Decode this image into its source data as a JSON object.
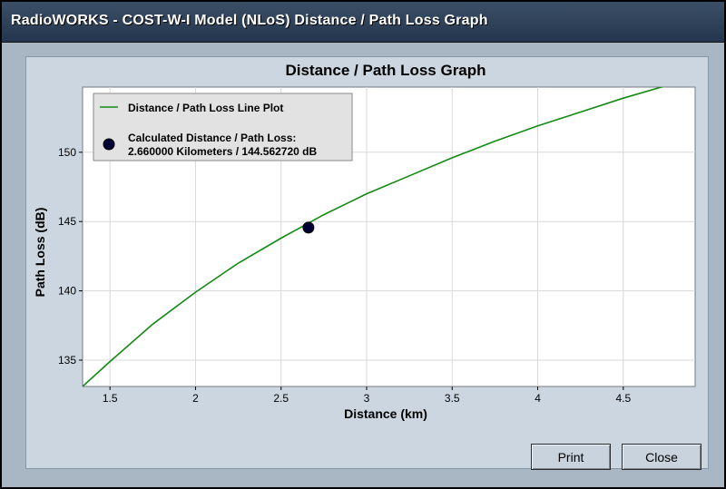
{
  "window": {
    "title": "RadioWORKS - COST-W-I Model (NLoS) Distance / Path Loss Graph"
  },
  "buttons": {
    "print_label": "Print",
    "close_label": "Close"
  },
  "colors": {
    "line": "#138a13",
    "marker": "#000033",
    "plot_bg": "#ffffff",
    "grid": "#d8d8d8",
    "panel_bg": "#cbd6e0",
    "client_bg": "#a9b7c4",
    "titlebar": "#2e4259"
  },
  "chart_data": {
    "type": "line",
    "title": "Distance / Path Loss Graph",
    "xlabel": "Distance (km)",
    "ylabel": "Path Loss (dB)",
    "xlim": [
      1.34,
      4.92
    ],
    "ylim": [
      133.1,
      154.7
    ],
    "x_ticks": [
      1.5,
      2,
      2.5,
      3,
      3.5,
      4,
      4.5
    ],
    "x_tick_labels": [
      "1.5",
      "2",
      "2.5",
      "3",
      "3.5",
      "4",
      "4.5"
    ],
    "y_ticks": [
      135,
      140,
      145,
      150
    ],
    "y_tick_labels": [
      "135",
      "140",
      "145",
      "150"
    ],
    "grid": true,
    "legend_position": "top-left",
    "series": [
      {
        "name": "Distance / Path Loss Line Plot",
        "x": [
          1.34,
          1.5,
          1.75,
          2.0,
          2.25,
          2.5,
          2.75,
          3.0,
          3.25,
          3.5,
          3.75,
          4.0,
          4.25,
          4.5,
          4.75,
          4.92
        ],
        "y": [
          133.1,
          134.9,
          137.6,
          139.9,
          142.0,
          143.8,
          145.5,
          147.0,
          148.3,
          149.6,
          150.8,
          151.9,
          152.9,
          153.9,
          154.8,
          155.4
        ]
      }
    ],
    "calculated_point": {
      "name": "Calculated Distance / Path Loss:",
      "detail": "2.660000 Kilometers / 144.562720 dB",
      "x": 2.66,
      "y": 144.56272
    }
  }
}
